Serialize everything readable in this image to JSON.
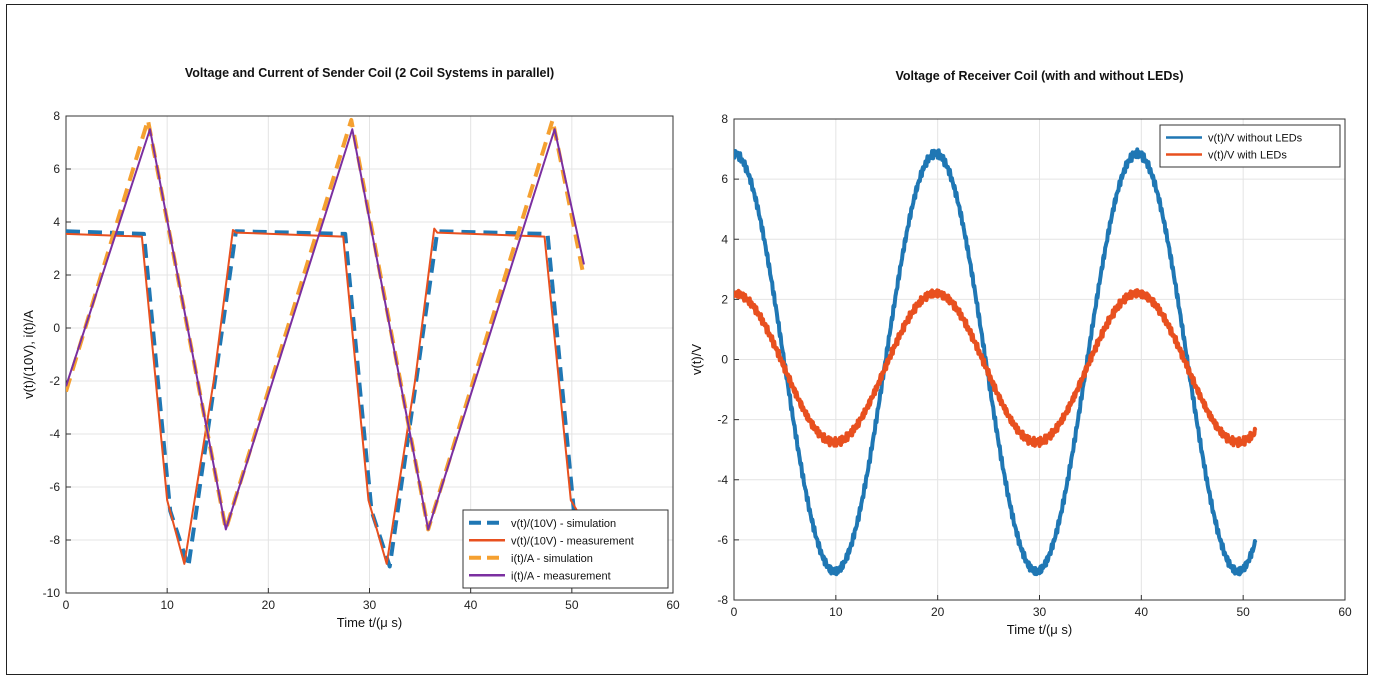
{
  "chart_data": [
    {
      "type": "line",
      "title": "Voltage and Current of Sender Coil (2 Coil Systems in parallel)",
      "xlabel": "Time t/(μ s)",
      "ylabel": "v(t)/(10V), i(t)/A",
      "xlim": [
        0,
        60
      ],
      "ylim": [
        -10,
        8
      ],
      "xticks": [
        "0",
        "10",
        "20",
        "30",
        "40",
        "50",
        "60"
      ],
      "yticks": [
        "-10",
        "-8",
        "-6",
        "-4",
        "-2",
        "0",
        "2",
        "4",
        "6",
        "8"
      ],
      "grid": true,
      "legend_position": "bottom-right",
      "series": [
        {
          "name": "v(t)/(10V) - simulation",
          "color": "#1f77b4",
          "style": "dashed",
          "x": [
            0,
            7.7,
            10.3,
            12.1,
            14.9,
            16.8,
            27.6,
            30.2,
            32,
            34.8,
            36.7,
            47.6,
            50.2,
            51
          ],
          "y": [
            3.65,
            3.55,
            -6.9,
            -9.0,
            -1.5,
            3.65,
            3.55,
            -6.9,
            -9.0,
            -1.5,
            3.65,
            3.55,
            -6.9,
            -8.8
          ]
        },
        {
          "name": "v(t)/(10V) - measurement",
          "color": "#e8501f",
          "style": "solid",
          "x": [
            0,
            7.5,
            10,
            11.7,
            14.6,
            16.5,
            16.8,
            27.4,
            29.9,
            31.7,
            34.5,
            36.4,
            36.7,
            47.3,
            49.9,
            51
          ],
          "y": [
            3.55,
            3.45,
            -6.5,
            -8.9,
            -2.0,
            3.7,
            3.6,
            3.45,
            -6.5,
            -8.9,
            -2.0,
            3.75,
            3.6,
            3.45,
            -6.5,
            -7.2
          ]
        },
        {
          "name": "i(t)/A - simulation",
          "color": "#f5a030",
          "style": "dashed",
          "x": [
            0,
            8.1,
            15.8,
            28.2,
            35.8,
            48.1,
            51.2
          ],
          "y": [
            -2.4,
            7.85,
            -7.6,
            7.85,
            -7.6,
            7.85,
            1.9
          ]
        },
        {
          "name": "i(t)/A - measurement",
          "color": "#7b2fa0",
          "style": "solid",
          "x": [
            0,
            8.3,
            15.8,
            28.3,
            35.8,
            48.3,
            51.2
          ],
          "y": [
            -2.2,
            7.5,
            -7.6,
            7.5,
            -7.6,
            7.5,
            2.4
          ]
        }
      ]
    },
    {
      "type": "line",
      "title": "Voltage of Receiver Coil (with and without LEDs)",
      "xlabel": "Time t/(μ s)",
      "ylabel": "v(t)/V",
      "xlim": [
        0,
        60
      ],
      "ylim": [
        -8,
        8
      ],
      "xticks": [
        "0",
        "10",
        "20",
        "30",
        "40",
        "50",
        "60"
      ],
      "yticks": [
        "-8",
        "-6",
        "-4",
        "-2",
        "0",
        "2",
        "4",
        "6",
        "8"
      ],
      "grid": true,
      "legend_position": "top-right",
      "series": [
        {
          "name": "v(t)/V without LEDs",
          "color": "#1f77b4",
          "waveform": {
            "type": "cosine",
            "x_start": 0,
            "x_end": 51.2,
            "period": 19.8,
            "peak": 6.85,
            "trough": -7.05
          }
        },
        {
          "name": "v(t)/V with LEDs",
          "color": "#e8501f",
          "waveform": {
            "type": "cosine",
            "x_start": 0,
            "x_end": 51.2,
            "period": 19.8,
            "peak": 2.2,
            "trough": -2.75
          }
        }
      ]
    }
  ]
}
